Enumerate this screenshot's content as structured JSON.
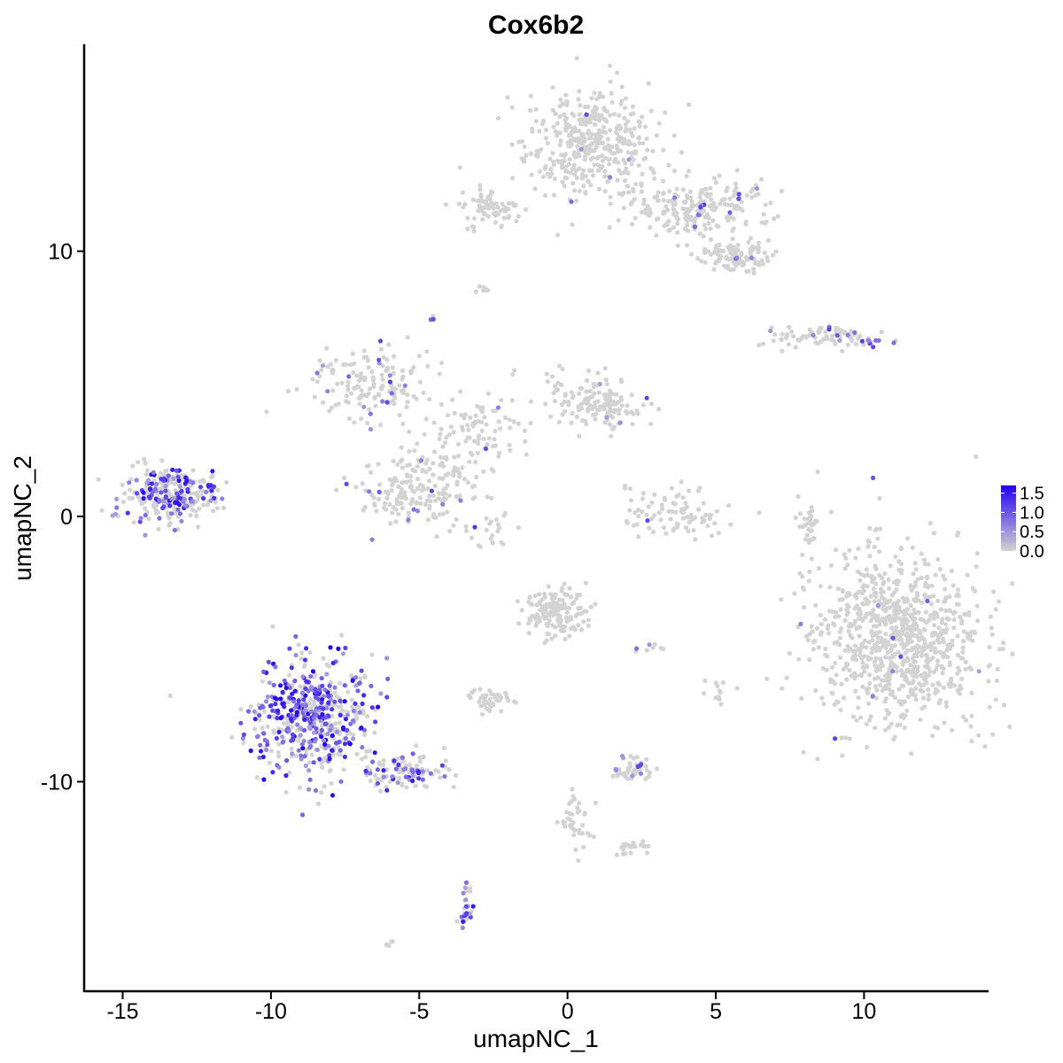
{
  "chart_data": {
    "type": "scatter",
    "title": "Cox6b2",
    "xlabel": "umapNC_1",
    "ylabel": "umapNC_2",
    "xlim": [
      -16.3,
      14.2
    ],
    "ylim": [
      -17.9,
      17.8
    ],
    "x_ticks": [
      -15,
      -10,
      -5,
      0,
      5,
      10
    ],
    "x_tick_labels": [
      "-15",
      "-10",
      "-5",
      "0",
      "5",
      "10"
    ],
    "y_ticks": [
      -10,
      0,
      10
    ],
    "y_tick_labels": [
      "-10",
      "0",
      "10"
    ],
    "grid": false,
    "color_scale": {
      "low_color": "#d3d3d3",
      "high_color": "#2200ee",
      "min": 0,
      "max": 1.7,
      "breaks": [
        0,
        0.5,
        1.0,
        1.5
      ],
      "break_labels": [
        "0.0",
        "0.5",
        "1.0",
        "1.5"
      ],
      "legend_position": "right"
    },
    "clusters": [
      {
        "cx": 0.8,
        "cy": 14.0,
        "sx": 1.1,
        "sy": 1.0,
        "n": 420,
        "expr_frac": 0.01,
        "expr_max": 1.2
      },
      {
        "cx": 4.4,
        "cy": 11.6,
        "sx": 1.2,
        "sy": 0.6,
        "n": 220,
        "expr_frac": 0.04,
        "expr_max": 1.3
      },
      {
        "cx": 5.6,
        "cy": 9.8,
        "sx": 0.6,
        "sy": 0.25,
        "n": 110,
        "expr_frac": 0.03,
        "expr_max": 1.3
      },
      {
        "cx": -2.6,
        "cy": 11.6,
        "sx": 0.5,
        "sy": 0.4,
        "n": 70,
        "expr_frac": 0.0,
        "expr_max": 0.0
      },
      {
        "cx": 8.6,
        "cy": 6.8,
        "sx": 1.0,
        "sy": 0.2,
        "n": 90,
        "expr_frac": 0.2,
        "expr_max": 1.3
      },
      {
        "cx": -13.3,
        "cy": 0.8,
        "sx": 0.8,
        "sy": 0.5,
        "n": 280,
        "expr_frac": 0.35,
        "expr_max": 1.6
      },
      {
        "cx": -6.5,
        "cy": 5.0,
        "sx": 1.1,
        "sy": 0.7,
        "n": 150,
        "expr_frac": 0.08,
        "expr_max": 1.3
      },
      {
        "cx": 1.2,
        "cy": 4.3,
        "sx": 0.9,
        "sy": 0.5,
        "n": 150,
        "expr_frac": 0.03,
        "expr_max": 1.2
      },
      {
        "cx": -5.0,
        "cy": 1.0,
        "sx": 1.0,
        "sy": 0.7,
        "n": 200,
        "expr_frac": 0.05,
        "expr_max": 1.3
      },
      {
        "cx": -3.0,
        "cy": 3.2,
        "sx": 1.0,
        "sy": 0.7,
        "n": 90,
        "expr_frac": 0.03,
        "expr_max": 1.2
      },
      {
        "cx": 3.6,
        "cy": 0.1,
        "sx": 0.8,
        "sy": 0.5,
        "n": 90,
        "expr_frac": 0.02,
        "expr_max": 1.2
      },
      {
        "cx": 11.1,
        "cy": -4.6,
        "sx": 1.4,
        "sy": 1.6,
        "n": 900,
        "expr_frac": 0.008,
        "expr_max": 1.2
      },
      {
        "cx": -0.4,
        "cy": -3.6,
        "sx": 0.5,
        "sy": 0.5,
        "n": 150,
        "expr_frac": 0.0,
        "expr_max": 0.0
      },
      {
        "cx": -8.6,
        "cy": -7.6,
        "sx": 1.0,
        "sy": 1.1,
        "n": 520,
        "expr_frac": 0.5,
        "expr_max": 1.7
      },
      {
        "cx": -5.4,
        "cy": -9.6,
        "sx": 0.9,
        "sy": 0.35,
        "n": 110,
        "expr_frac": 0.3,
        "expr_max": 1.5
      },
      {
        "cx": -2.6,
        "cy": -6.9,
        "sx": 0.35,
        "sy": 0.2,
        "n": 45,
        "expr_frac": 0.0,
        "expr_max": 0.0
      },
      {
        "cx": 2.2,
        "cy": -9.5,
        "sx": 0.35,
        "sy": 0.25,
        "n": 45,
        "expr_frac": 0.15,
        "expr_max": 1.2
      },
      {
        "cx": -3.4,
        "cy": -14.8,
        "sx": 0.12,
        "sy": 0.4,
        "n": 30,
        "expr_frac": 0.5,
        "expr_max": 1.7
      },
      {
        "cx": 0.2,
        "cy": -11.5,
        "sx": 0.3,
        "sy": 0.7,
        "n": 40,
        "expr_frac": 0.02,
        "expr_max": 1.2
      },
      {
        "cx": 2.2,
        "cy": -12.5,
        "sx": 0.3,
        "sy": 0.15,
        "n": 20,
        "expr_frac": 0.05,
        "expr_max": 1.2
      },
      {
        "cx": 8.2,
        "cy": -0.3,
        "sx": 0.2,
        "sy": 0.6,
        "n": 35,
        "expr_frac": 0.0,
        "expr_max": 0.0
      },
      {
        "cx": -2.5,
        "cy": -0.5,
        "sx": 0.4,
        "sy": 0.4,
        "n": 20,
        "expr_frac": 0.0,
        "expr_max": 0.0
      },
      {
        "cx": -2.8,
        "cy": 8.6,
        "sx": 0.15,
        "sy": 0.1,
        "n": 8,
        "expr_frac": 0.0,
        "expr_max": 0.0
      },
      {
        "cx": -4.6,
        "cy": 7.5,
        "sx": 0.1,
        "sy": 0.1,
        "n": 6,
        "expr_frac": 0.3,
        "expr_max": 1.2
      },
      {
        "cx": -6.0,
        "cy": -16.2,
        "sx": 0.1,
        "sy": 0.1,
        "n": 5,
        "expr_frac": 0.0,
        "expr_max": 0.0
      },
      {
        "cx": 5.0,
        "cy": -6.5,
        "sx": 0.2,
        "sy": 0.3,
        "n": 12,
        "expr_frac": 0.1,
        "expr_max": 1.2
      },
      {
        "cx": 2.8,
        "cy": -4.9,
        "sx": 0.3,
        "sy": 0.1,
        "n": 8,
        "expr_frac": 0.1,
        "expr_max": 1.2
      }
    ]
  }
}
